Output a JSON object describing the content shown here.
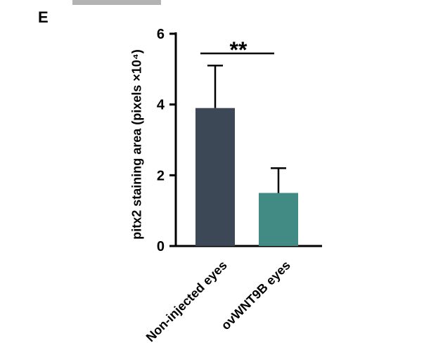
{
  "panel_label": "E",
  "chart_data": {
    "type": "bar",
    "categories": [
      "Non-injected eyes",
      "ovWNT9B eyes"
    ],
    "values": [
      3.9,
      1.5
    ],
    "errors": [
      1.2,
      0.7
    ],
    "error_direction": "upper",
    "bar_colors": [
      "#3d4856",
      "#418b84"
    ],
    "axis_color": "#000000",
    "title": "",
    "xlabel": "",
    "ylabel": "pitx2 staining area (pixels ×10⁴)",
    "ylim": [
      0,
      6
    ],
    "yticks": [
      0,
      2,
      4,
      6
    ],
    "grid": false,
    "legend": "none",
    "significance": {
      "label": "**",
      "pair": [
        0,
        1
      ]
    }
  }
}
